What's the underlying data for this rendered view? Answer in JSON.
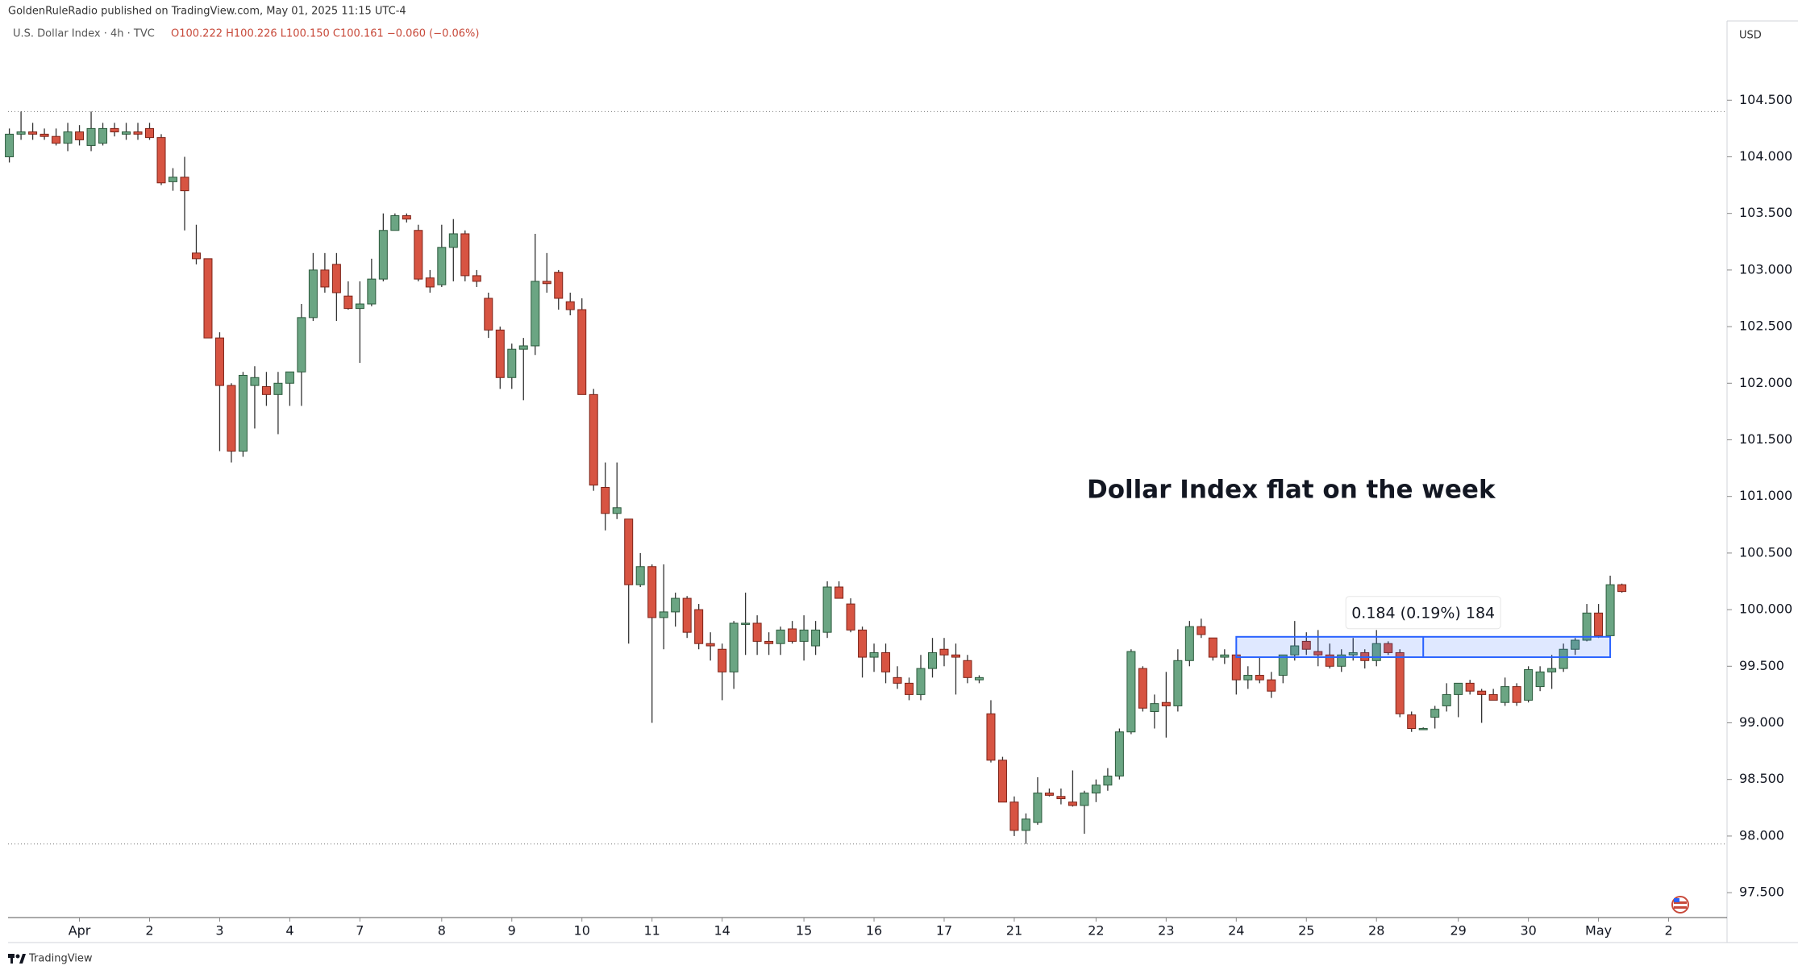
{
  "header": "GoldenRuleRadio published on TradingView.com, May 01, 2025 11:15 UTC-4",
  "footer": "TradingView",
  "chart_data": {
    "type": "candlestick",
    "symbol": "U.S. Dollar Index · 4h · TVC",
    "ohlc_text": "O100.222 H100.226 L100.150 C100.161 −0.060 (−0.06%)",
    "currency": "USD",
    "annotation": "Dollar Index flat on the week",
    "up_color": "#6ba583",
    "down_color": "#d75442",
    "open": [
      104.0,
      104.2,
      104.22,
      104.2,
      104.18,
      104.12,
      104.22,
      104.1,
      104.12,
      104.25,
      104.2,
      104.22,
      104.25,
      104.17,
      103.78,
      103.82,
      103.15,
      103.1,
      102.4,
      101.98,
      101.4,
      101.98,
      101.97,
      101.9,
      102.0,
      102.1,
      102.58,
      103.0,
      103.05,
      102.77,
      102.66,
      102.7,
      102.92,
      103.35,
      103.48,
      103.35,
      102.93,
      102.87,
      103.2,
      103.32,
      102.95,
      102.75,
      102.47,
      102.05,
      102.3,
      102.33,
      102.9,
      102.98,
      102.72,
      102.65,
      101.9,
      101.08,
      100.85,
      100.8,
      100.22,
      100.38,
      99.93,
      99.98,
      100.1,
      100.0,
      99.7,
      99.65,
      99.45,
      99.88,
      99.88,
      99.72,
      99.7,
      99.83,
      99.72,
      99.68,
      99.8,
      100.2,
      100.05,
      99.82,
      99.58,
      99.62,
      99.4,
      99.35,
      99.25,
      99.48,
      99.65,
      99.6,
      99.55,
      99.38,
      99.08,
      98.67,
      98.3,
      98.05,
      98.12,
      98.38,
      98.35,
      98.3,
      98.27,
      98.38,
      98.45,
      98.53,
      98.92,
      99.48,
      99.1,
      99.18,
      99.15,
      99.55,
      99.85,
      99.75,
      99.58,
      99.6,
      99.38,
      99.42,
      99.38,
      99.42,
      99.6,
      99.72,
      99.63,
      99.6,
      99.5,
      99.6,
      99.62,
      99.55,
      99.7,
      99.62,
      99.07,
      98.95,
      99.05,
      99.15,
      99.25,
      99.35,
      99.28,
      99.25,
      99.18,
      99.32,
      99.2,
      99.32,
      99.45,
      99.48,
      99.65,
      99.73,
      99.97,
      99.77,
      100.22
    ],
    "high": [
      104.25,
      104.4,
      104.3,
      104.25,
      104.25,
      104.3,
      104.28,
      104.4,
      104.3,
      104.3,
      104.3,
      104.3,
      104.3,
      104.2,
      103.9,
      104.0,
      103.4,
      103.1,
      102.45,
      102.0,
      102.1,
      102.15,
      102.1,
      102.1,
      102.1,
      102.7,
      103.15,
      103.15,
      103.15,
      102.9,
      102.9,
      103.1,
      103.5,
      103.5,
      103.5,
      103.4,
      103.0,
      103.4,
      103.45,
      103.35,
      103.0,
      102.8,
      102.5,
      102.35,
      102.4,
      103.32,
      103.15,
      103.0,
      102.8,
      102.75,
      101.95,
      101.3,
      101.3,
      100.8,
      100.5,
      100.4,
      100.4,
      100.15,
      100.12,
      100.05,
      99.8,
      99.7,
      99.9,
      100.15,
      99.95,
      99.8,
      99.85,
      99.9,
      99.95,
      99.9,
      100.25,
      100.25,
      100.1,
      99.85,
      99.7,
      99.7,
      99.5,
      99.4,
      99.6,
      99.75,
      99.75,
      99.7,
      99.6,
      99.42,
      99.2,
      98.7,
      98.35,
      98.2,
      98.52,
      98.42,
      98.42,
      98.58,
      98.4,
      98.5,
      98.6,
      98.95,
      99.65,
      99.5,
      99.25,
      99.45,
      99.65,
      99.9,
      99.92,
      99.75,
      99.65,
      99.75,
      99.5,
      99.58,
      99.45,
      99.6,
      99.9,
      99.8,
      99.82,
      99.7,
      99.65,
      99.75,
      99.65,
      99.82,
      99.72,
      99.65,
      99.1,
      98.96,
      99.15,
      99.35,
      99.35,
      99.38,
      99.3,
      99.3,
      99.4,
      99.35,
      99.5,
      99.5,
      99.6,
      99.7,
      99.75,
      100.05,
      100.05,
      100.3,
      100.23
    ],
    "low": [
      103.95,
      104.15,
      104.15,
      104.15,
      104.1,
      104.05,
      104.1,
      104.05,
      104.1,
      104.18,
      104.15,
      104.15,
      104.15,
      103.75,
      103.7,
      103.35,
      103.05,
      102.4,
      101.4,
      101.3,
      101.35,
      101.6,
      101.8,
      101.55,
      101.8,
      101.8,
      102.55,
      102.8,
      102.55,
      102.65,
      102.18,
      102.68,
      102.9,
      103.35,
      103.42,
      102.9,
      102.8,
      102.85,
      102.9,
      102.9,
      102.85,
      102.4,
      101.95,
      101.95,
      101.85,
      102.25,
      102.8,
      102.65,
      102.6,
      101.9,
      101.05,
      100.7,
      100.8,
      99.7,
      100.2,
      99.0,
      99.65,
      99.85,
      99.75,
      99.65,
      99.55,
      99.2,
      99.3,
      99.6,
      99.6,
      99.6,
      99.6,
      99.7,
      99.55,
      99.6,
      99.75,
      100.1,
      99.8,
      99.4,
      99.45,
      99.35,
      99.3,
      99.2,
      99.2,
      99.4,
      99.5,
      99.25,
      99.35,
      99.35,
      98.65,
      98.3,
      98.0,
      97.93,
      98.1,
      98.35,
      98.28,
      98.26,
      98.02,
      98.3,
      98.4,
      98.5,
      98.9,
      99.1,
      98.95,
      98.87,
      99.1,
      99.5,
      99.75,
      99.55,
      99.52,
      99.25,
      99.3,
      99.35,
      99.22,
      99.35,
      99.55,
      99.6,
      99.5,
      99.48,
      99.45,
      99.55,
      99.48,
      99.5,
      99.6,
      99.05,
      98.92,
      98.94,
      98.95,
      99.1,
      99.05,
      99.25,
      99.0,
      99.2,
      99.15,
      99.15,
      99.18,
      99.28,
      99.3,
      99.45,
      99.6,
      99.72,
      99.75,
      99.75,
      100.15
    ],
    "close": [
      104.2,
      104.22,
      104.2,
      104.18,
      104.12,
      104.22,
      104.15,
      104.25,
      104.25,
      104.22,
      104.22,
      104.2,
      104.17,
      103.77,
      103.82,
      103.7,
      103.1,
      102.4,
      101.98,
      101.4,
      102.07,
      102.05,
      101.9,
      102.0,
      102.1,
      102.58,
      103.0,
      102.85,
      102.8,
      102.66,
      102.7,
      102.92,
      103.35,
      103.48,
      103.45,
      102.92,
      102.85,
      103.2,
      103.32,
      102.95,
      102.9,
      102.47,
      102.05,
      102.3,
      102.33,
      102.9,
      102.88,
      102.75,
      102.65,
      101.9,
      101.1,
      100.85,
      100.9,
      100.22,
      100.38,
      99.93,
      99.98,
      100.1,
      99.8,
      99.7,
      99.68,
      99.45,
      99.88,
      99.88,
      99.72,
      99.7,
      99.82,
      99.72,
      99.82,
      99.82,
      100.2,
      100.1,
      99.82,
      99.58,
      99.62,
      99.45,
      99.35,
      99.25,
      99.48,
      99.62,
      99.6,
      99.58,
      99.4,
      99.4,
      98.67,
      98.3,
      98.05,
      98.15,
      98.38,
      98.36,
      98.33,
      98.27,
      98.38,
      98.45,
      98.53,
      98.92,
      99.63,
      99.13,
      99.17,
      99.15,
      99.55,
      99.85,
      99.78,
      99.58,
      99.6,
      99.38,
      99.42,
      99.38,
      99.28,
      99.6,
      99.68,
      99.65,
      99.6,
      99.5,
      99.6,
      99.62,
      99.55,
      99.7,
      99.62,
      99.08,
      98.95,
      98.95,
      99.12,
      99.25,
      99.35,
      99.28,
      99.25,
      99.2,
      99.32,
      99.18,
      99.47,
      99.45,
      99.48,
      99.65,
      99.73,
      99.97,
      99.77,
      100.22,
      100.16
    ],
    "hlines": [
      104.4,
      97.93
    ],
    "measure": {
      "start": 105,
      "end": 137,
      "low": 99.58,
      "high": 99.76,
      "label": "0.184 (0.19%) 184"
    },
    "xlim": [
      -0.8,
      147
    ],
    "ylim": [
      97.28,
      105.2
    ],
    "xticks": [
      {
        "value": 6,
        "label": "Apr"
      },
      {
        "value": 12,
        "label": "2"
      },
      {
        "value": 18,
        "label": "3"
      },
      {
        "value": 24,
        "label": "4"
      },
      {
        "value": 30,
        "label": "7"
      },
      {
        "value": 37,
        "label": "8"
      },
      {
        "value": 43,
        "label": "9"
      },
      {
        "value": 49,
        "label": "10"
      },
      {
        "value": 55,
        "label": "11"
      },
      {
        "value": 61,
        "label": "14"
      },
      {
        "value": 68,
        "label": "15"
      },
      {
        "value": 74,
        "label": "16"
      },
      {
        "value": 80,
        "label": "17"
      },
      {
        "value": 86,
        "label": "21"
      },
      {
        "value": 93,
        "label": "22"
      },
      {
        "value": 99,
        "label": "23"
      },
      {
        "value": 105,
        "label": "24"
      },
      {
        "value": 111,
        "label": "25"
      },
      {
        "value": 117,
        "label": "28"
      },
      {
        "value": 124,
        "label": "29"
      },
      {
        "value": 130,
        "label": "30"
      },
      {
        "value": 136,
        "label": "May"
      },
      {
        "value": 142,
        "label": "2"
      }
    ],
    "yticks": [
      {
        "value": 97.5,
        "label": "97.500"
      },
      {
        "value": 98,
        "label": "98.000"
      },
      {
        "value": 98.5,
        "label": "98.500"
      },
      {
        "value": 99,
        "label": "99.000"
      },
      {
        "value": 99.5,
        "label": "99.500"
      },
      {
        "value": 100,
        "label": "100.000"
      },
      {
        "value": 100.5,
        "label": "100.500"
      },
      {
        "value": 101,
        "label": "101.000"
      },
      {
        "value": 101.5,
        "label": "101.500"
      },
      {
        "value": 102,
        "label": "102.000"
      },
      {
        "value": 102.5,
        "label": "102.500"
      },
      {
        "value": 103,
        "label": "103.000"
      },
      {
        "value": 103.5,
        "label": "103.500"
      },
      {
        "value": 104,
        "label": "104.000"
      },
      {
        "value": 104.5,
        "label": "104.500"
      }
    ]
  }
}
